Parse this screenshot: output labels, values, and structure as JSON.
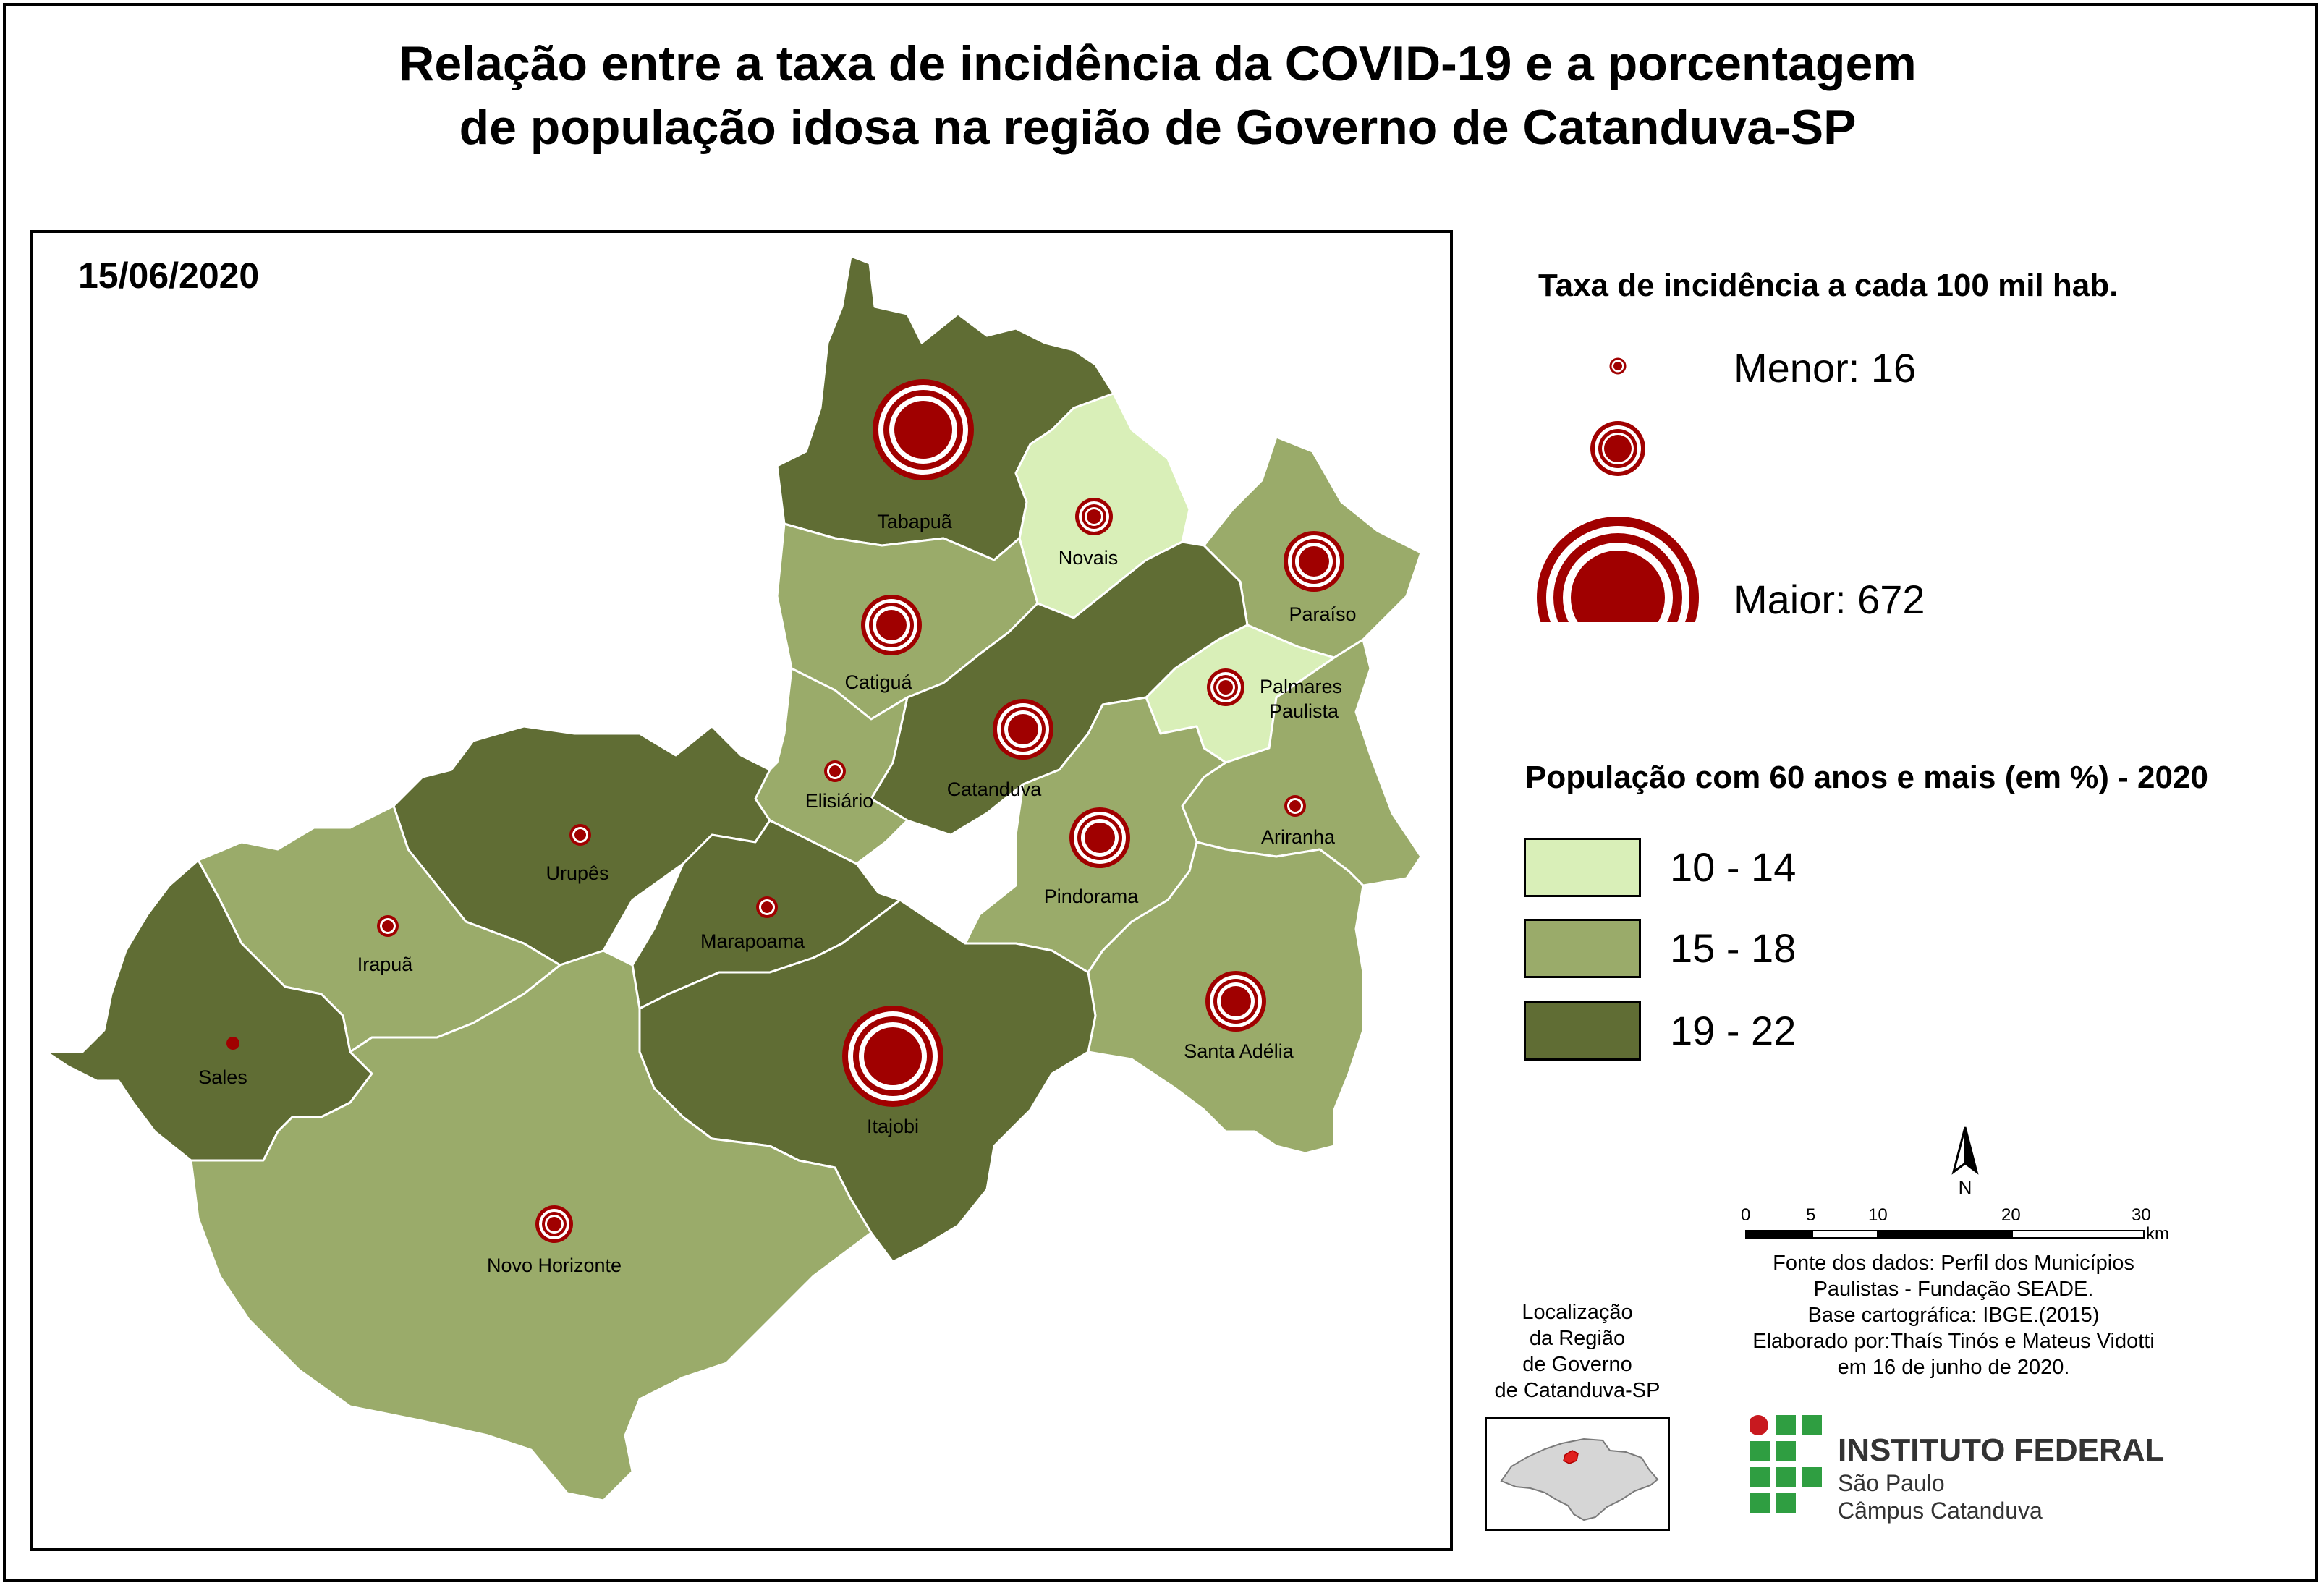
{
  "title": {
    "line1": "Relação entre a taxa de incidência da COVID-19 e a porcentagem",
    "line2": "de  população idosa na região de Governo de Catanduva-SP"
  },
  "date": "15/06/2020",
  "legend_incidence": {
    "title": "Taxa de incidência a cada 100 mil hab.",
    "min_label": "Menor: 16",
    "max_label": "Maior: 672"
  },
  "legend_population": {
    "title": "População com 60 anos e mais (em %) - 2020",
    "classes": [
      {
        "label": "10 - 14",
        "color": "#d9efb8"
      },
      {
        "label": "15 - 18",
        "color": "#9aab6a"
      },
      {
        "label": "19 - 22",
        "color": "#606d34"
      }
    ]
  },
  "colors": {
    "circle": "#a00000",
    "light": "#d9efb8",
    "medium": "#9aab6a",
    "dark": "#606d34"
  },
  "municipalities": [
    {
      "name": "Tabapuã",
      "class": 2,
      "size": 3
    },
    {
      "name": "Novais",
      "class": 0,
      "size": 1
    },
    {
      "name": "Paraíso",
      "class": 1,
      "size": 2
    },
    {
      "name": "Catiguá",
      "class": 1,
      "size": 2
    },
    {
      "name": "Palmares",
      "name2": "Paulista",
      "class": 0,
      "size": 1
    },
    {
      "name": "Catanduva",
      "class": 2,
      "size": 2
    },
    {
      "name": "Elisiário",
      "class": 1,
      "size": 0
    },
    {
      "name": "Urupês",
      "class": 2,
      "size": 0
    },
    {
      "name": "Ariranha",
      "class": 1,
      "size": 0
    },
    {
      "name": "Pindorama",
      "class": 1,
      "size": 2
    },
    {
      "name": "Irapuã",
      "class": 1,
      "size": 0
    },
    {
      "name": "Marapoama",
      "class": 2,
      "size": 0
    },
    {
      "name": "Santa Adélia",
      "class": 1,
      "size": 2
    },
    {
      "name": "Sales",
      "class": 2,
      "size": -1
    },
    {
      "name": "Itajobi",
      "class": 2,
      "size": 3
    },
    {
      "name": "Novo Horizonte",
      "class": 1,
      "size": 1
    }
  ],
  "north": "N",
  "scale": {
    "ticks": [
      "0",
      "5",
      "10",
      "20",
      "30"
    ],
    "unit": "km"
  },
  "source": {
    "line1": "Fonte dos dados: Perfil dos Municípios",
    "line2": "Paulistas - Fundação SEADE.",
    "line3": "Base cartográfica: IBGE.(2015)",
    "line4": "Elaborado por:Thaís Tinós e Mateus Vidotti",
    "line5": "em 16 de junho de 2020."
  },
  "location": {
    "line1": "Localização",
    "line2": "da Região",
    "line3": "de Governo",
    "line4": "de Catanduva-SP"
  },
  "institute": {
    "name": "INSTITUTO FEDERAL",
    "state": "São Paulo",
    "campus": "Câmpus Catanduva",
    "red": "#c8191f",
    "green": "#2f9e41"
  }
}
